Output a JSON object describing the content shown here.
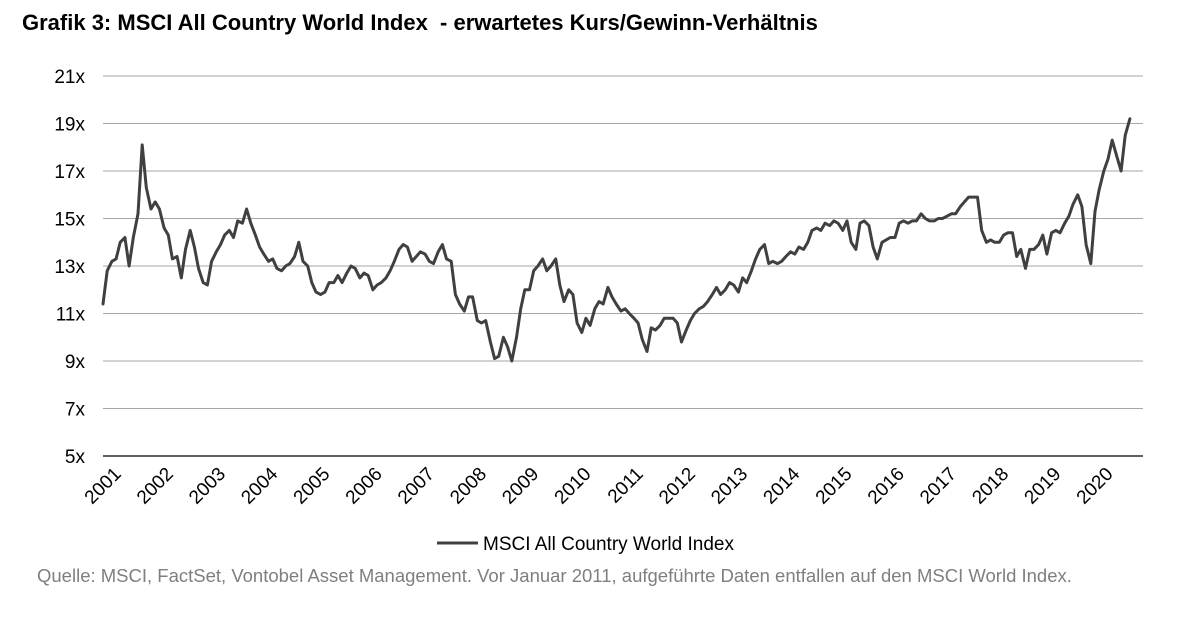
{
  "chart_data": {
    "type": "line",
    "title": "Grafik 3: MSCI All Country World Index  - erwartetes Kurs/Gewinn-Verhältnis",
    "xlabel": "",
    "ylabel": "",
    "xlim": [
      2001,
      2020.92
    ],
    "ylim": [
      5,
      21
    ],
    "y_ticks": [
      5,
      7,
      9,
      11,
      13,
      15,
      17,
      19,
      21
    ],
    "y_tick_labels": [
      "5x",
      "7x",
      "9x",
      "11x",
      "13x",
      "15x",
      "17x",
      "19x",
      "21x"
    ],
    "x_tick_labels": [
      "2001",
      "2002",
      "2003",
      "2004",
      "2005",
      "2006",
      "2007",
      "2008",
      "2009",
      "2010",
      "2011",
      "2012",
      "2013",
      "2014",
      "2015",
      "2016",
      "2017",
      "2018",
      "2019",
      "2020"
    ],
    "grid": "horizontal",
    "legend_position": "bottom",
    "series": [
      {
        "name": "MSCI All Country World Index",
        "color": "#404040",
        "points": [
          [
            2001.0,
            11.4
          ],
          [
            2001.08,
            12.8
          ],
          [
            2001.17,
            13.2
          ],
          [
            2001.25,
            13.3
          ],
          [
            2001.33,
            14.0
          ],
          [
            2001.42,
            14.2
          ],
          [
            2001.5,
            13.0
          ],
          [
            2001.58,
            14.2
          ],
          [
            2001.67,
            15.2
          ],
          [
            2001.75,
            18.1
          ],
          [
            2001.83,
            16.3
          ],
          [
            2001.92,
            15.4
          ],
          [
            2002.0,
            15.7
          ],
          [
            2002.08,
            15.4
          ],
          [
            2002.17,
            14.6
          ],
          [
            2002.25,
            14.3
          ],
          [
            2002.33,
            13.3
          ],
          [
            2002.42,
            13.4
          ],
          [
            2002.5,
            12.5
          ],
          [
            2002.58,
            13.7
          ],
          [
            2002.67,
            14.5
          ],
          [
            2002.75,
            13.8
          ],
          [
            2002.83,
            12.9
          ],
          [
            2002.92,
            12.3
          ],
          [
            2003.0,
            12.2
          ],
          [
            2003.08,
            13.2
          ],
          [
            2003.17,
            13.6
          ],
          [
            2003.25,
            13.9
          ],
          [
            2003.33,
            14.3
          ],
          [
            2003.42,
            14.5
          ],
          [
            2003.5,
            14.2
          ],
          [
            2003.58,
            14.9
          ],
          [
            2003.67,
            14.8
          ],
          [
            2003.75,
            15.4
          ],
          [
            2003.83,
            14.8
          ],
          [
            2003.92,
            14.3
          ],
          [
            2004.0,
            13.8
          ],
          [
            2004.08,
            13.5
          ],
          [
            2004.17,
            13.2
          ],
          [
            2004.25,
            13.3
          ],
          [
            2004.33,
            12.9
          ],
          [
            2004.42,
            12.8
          ],
          [
            2004.5,
            13.0
          ],
          [
            2004.58,
            13.1
          ],
          [
            2004.67,
            13.4
          ],
          [
            2004.75,
            14.0
          ],
          [
            2004.83,
            13.2
          ],
          [
            2004.92,
            13.0
          ],
          [
            2005.0,
            12.3
          ],
          [
            2005.08,
            11.9
          ],
          [
            2005.17,
            11.8
          ],
          [
            2005.25,
            11.9
          ],
          [
            2005.33,
            12.3
          ],
          [
            2005.42,
            12.3
          ],
          [
            2005.5,
            12.6
          ],
          [
            2005.58,
            12.3
          ],
          [
            2005.67,
            12.7
          ],
          [
            2005.75,
            13.0
          ],
          [
            2005.83,
            12.9
          ],
          [
            2005.92,
            12.5
          ],
          [
            2006.0,
            12.7
          ],
          [
            2006.08,
            12.6
          ],
          [
            2006.17,
            12.0
          ],
          [
            2006.25,
            12.2
          ],
          [
            2006.33,
            12.3
          ],
          [
            2006.42,
            12.5
          ],
          [
            2006.5,
            12.8
          ],
          [
            2006.58,
            13.2
          ],
          [
            2006.67,
            13.7
          ],
          [
            2006.75,
            13.9
          ],
          [
            2006.83,
            13.8
          ],
          [
            2006.92,
            13.2
          ],
          [
            2007.0,
            13.4
          ],
          [
            2007.08,
            13.6
          ],
          [
            2007.17,
            13.5
          ],
          [
            2007.25,
            13.2
          ],
          [
            2007.33,
            13.1
          ],
          [
            2007.42,
            13.6
          ],
          [
            2007.5,
            13.9
          ],
          [
            2007.58,
            13.3
          ],
          [
            2007.67,
            13.2
          ],
          [
            2007.75,
            11.8
          ],
          [
            2007.83,
            11.4
          ],
          [
            2007.92,
            11.1
          ],
          [
            2008.0,
            11.7
          ],
          [
            2008.08,
            11.7
          ],
          [
            2008.17,
            10.7
          ],
          [
            2008.25,
            10.6
          ],
          [
            2008.33,
            10.7
          ],
          [
            2008.42,
            9.8
          ],
          [
            2008.5,
            9.1
          ],
          [
            2008.58,
            9.2
          ],
          [
            2008.67,
            10.0
          ],
          [
            2008.75,
            9.6
          ],
          [
            2008.83,
            9.0
          ],
          [
            2008.92,
            10.0
          ],
          [
            2009.0,
            11.2
          ],
          [
            2009.08,
            12.0
          ],
          [
            2009.17,
            12.0
          ],
          [
            2009.25,
            12.8
          ],
          [
            2009.33,
            13.0
          ],
          [
            2009.42,
            13.3
          ],
          [
            2009.5,
            12.8
          ],
          [
            2009.58,
            13.0
          ],
          [
            2009.67,
            13.3
          ],
          [
            2009.75,
            12.2
          ],
          [
            2009.83,
            11.5
          ],
          [
            2009.92,
            12.0
          ],
          [
            2010.0,
            11.8
          ],
          [
            2010.08,
            10.6
          ],
          [
            2010.17,
            10.2
          ],
          [
            2010.25,
            10.8
          ],
          [
            2010.33,
            10.5
          ],
          [
            2010.42,
            11.2
          ],
          [
            2010.5,
            11.5
          ],
          [
            2010.58,
            11.4
          ],
          [
            2010.67,
            12.1
          ],
          [
            2010.75,
            11.7
          ],
          [
            2010.83,
            11.4
          ],
          [
            2010.92,
            11.1
          ],
          [
            2011.0,
            11.2
          ],
          [
            2011.08,
            11.0
          ],
          [
            2011.17,
            10.8
          ],
          [
            2011.25,
            10.6
          ],
          [
            2011.33,
            9.9
          ],
          [
            2011.42,
            9.4
          ],
          [
            2011.5,
            10.4
          ],
          [
            2011.58,
            10.3
          ],
          [
            2011.67,
            10.5
          ],
          [
            2011.75,
            10.8
          ],
          [
            2011.83,
            10.8
          ],
          [
            2011.92,
            10.8
          ],
          [
            2012.0,
            10.6
          ],
          [
            2012.08,
            9.8
          ],
          [
            2012.17,
            10.3
          ],
          [
            2012.25,
            10.7
          ],
          [
            2012.33,
            11.0
          ],
          [
            2012.42,
            11.2
          ],
          [
            2012.5,
            11.3
          ],
          [
            2012.58,
            11.5
          ],
          [
            2012.67,
            11.8
          ],
          [
            2012.75,
            12.1
          ],
          [
            2012.83,
            11.8
          ],
          [
            2012.92,
            12.0
          ],
          [
            2013.0,
            12.3
          ],
          [
            2013.08,
            12.2
          ],
          [
            2013.17,
            11.9
          ],
          [
            2013.25,
            12.5
          ],
          [
            2013.33,
            12.3
          ],
          [
            2013.42,
            12.8
          ],
          [
            2013.5,
            13.3
          ],
          [
            2013.58,
            13.7
          ],
          [
            2013.67,
            13.9
          ],
          [
            2013.75,
            13.1
          ],
          [
            2013.83,
            13.2
          ],
          [
            2013.92,
            13.1
          ],
          [
            2014.0,
            13.2
          ],
          [
            2014.08,
            13.4
          ],
          [
            2014.17,
            13.6
          ],
          [
            2014.25,
            13.5
          ],
          [
            2014.33,
            13.8
          ],
          [
            2014.42,
            13.7
          ],
          [
            2014.5,
            14.0
          ],
          [
            2014.58,
            14.5
          ],
          [
            2014.67,
            14.6
          ],
          [
            2014.75,
            14.5
          ],
          [
            2014.83,
            14.8
          ],
          [
            2014.92,
            14.7
          ],
          [
            2015.0,
            14.9
          ],
          [
            2015.08,
            14.8
          ],
          [
            2015.17,
            14.5
          ],
          [
            2015.25,
            14.9
          ],
          [
            2015.33,
            14.0
          ],
          [
            2015.42,
            13.7
          ],
          [
            2015.5,
            14.8
          ],
          [
            2015.58,
            14.9
          ],
          [
            2015.67,
            14.7
          ],
          [
            2015.75,
            13.8
          ],
          [
            2015.83,
            13.3
          ],
          [
            2015.92,
            14.0
          ],
          [
            2016.0,
            14.1
          ],
          [
            2016.08,
            14.2
          ],
          [
            2016.17,
            14.2
          ],
          [
            2016.25,
            14.8
          ],
          [
            2016.33,
            14.9
          ],
          [
            2016.42,
            14.8
          ],
          [
            2016.5,
            14.9
          ],
          [
            2016.58,
            14.9
          ],
          [
            2016.67,
            15.2
          ],
          [
            2016.75,
            15.0
          ],
          [
            2016.83,
            14.9
          ],
          [
            2016.92,
            14.9
          ],
          [
            2017.0,
            15.0
          ],
          [
            2017.08,
            15.0
          ],
          [
            2017.17,
            15.1
          ],
          [
            2017.25,
            15.2
          ],
          [
            2017.33,
            15.2
          ],
          [
            2017.42,
            15.5
          ],
          [
            2017.5,
            15.7
          ],
          [
            2017.58,
            15.9
          ],
          [
            2017.67,
            15.9
          ],
          [
            2017.75,
            15.9
          ],
          [
            2017.83,
            14.5
          ],
          [
            2017.92,
            14.0
          ],
          [
            2018.0,
            14.1
          ],
          [
            2018.08,
            14.0
          ],
          [
            2018.17,
            14.0
          ],
          [
            2018.25,
            14.3
          ],
          [
            2018.33,
            14.4
          ],
          [
            2018.42,
            14.4
          ],
          [
            2018.5,
            13.4
          ],
          [
            2018.58,
            13.7
          ],
          [
            2018.67,
            12.9
          ],
          [
            2018.75,
            13.7
          ],
          [
            2018.83,
            13.7
          ],
          [
            2018.92,
            13.9
          ],
          [
            2019.0,
            14.3
          ],
          [
            2019.08,
            13.5
          ],
          [
            2019.17,
            14.4
          ],
          [
            2019.25,
            14.5
          ],
          [
            2019.33,
            14.4
          ],
          [
            2019.42,
            14.8
          ],
          [
            2019.5,
            15.1
          ],
          [
            2019.58,
            15.6
          ],
          [
            2019.67,
            16.0
          ],
          [
            2019.75,
            15.5
          ],
          [
            2019.83,
            13.9
          ],
          [
            2019.92,
            13.1
          ],
          [
            2020.0,
            15.3
          ],
          [
            2020.08,
            16.2
          ],
          [
            2020.17,
            17.0
          ],
          [
            2020.25,
            17.5
          ],
          [
            2020.33,
            18.3
          ],
          [
            2020.42,
            17.6
          ],
          [
            2020.5,
            17.0
          ],
          [
            2020.58,
            18.5
          ],
          [
            2020.67,
            19.2
          ]
        ]
      }
    ],
    "source_note": "Quelle: MSCI, FactSet, Vontobel Asset Management. Vor Januar 2011, aufgeführte Daten entfallen auf den MSCI World Index."
  }
}
